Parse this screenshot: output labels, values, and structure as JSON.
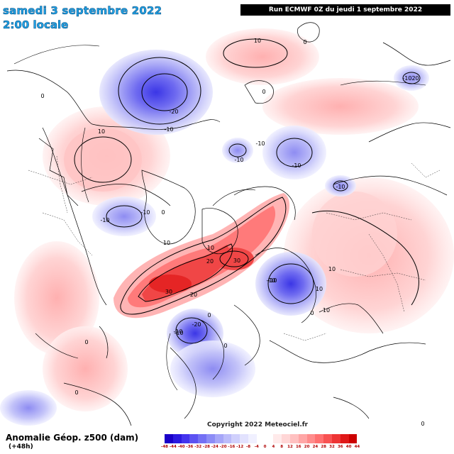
{
  "header": {
    "date": "samedi 3 septembre 2022",
    "time": "2:00 locale",
    "run": "Run ECMWF 0Z du jeudi 1 septembre 2022"
  },
  "footer": {
    "variable": "Anomalie Géop. z500 (dam)",
    "lead": "(+48h)",
    "copyright": "Copyright 2022 Meteociel.fr"
  },
  "legend": {
    "ticks": [
      "-48",
      "-44",
      "-40",
      "-36",
      "-32",
      "-28",
      "-24",
      "-20",
      "-16",
      "-12",
      "-8",
      "-4",
      "0",
      "4",
      "8",
      "12",
      "16",
      "20",
      "24",
      "28",
      "32",
      "36",
      "40",
      "44"
    ],
    "colors": [
      "#1a00c8",
      "#2c1ae0",
      "#4434ee",
      "#5c52f2",
      "#7470f4",
      "#8c8cf6",
      "#a6a6f8",
      "#bcbcfa",
      "#d0d0fc",
      "#e2e2fe",
      "#f0f0ff",
      "#ffffff",
      "#ffffff",
      "#ffeaea",
      "#ffd6d6",
      "#ffc0c0",
      "#ffa6a6",
      "#ff8c8c",
      "#ff7070",
      "#f85252",
      "#ee3434",
      "#e01818",
      "#cc0000"
    ]
  },
  "contour_labels": [
    {
      "text": "-20"
    },
    {
      "text": "-10"
    },
    {
      "text": "10"
    },
    {
      "text": "10"
    },
    {
      "text": "-10"
    },
    {
      "text": "-10"
    },
    {
      "text": "-10"
    },
    {
      "text": "-10"
    },
    {
      "text": "-10"
    },
    {
      "text": "-10"
    },
    {
      "text": "-1020"
    },
    {
      "text": "-10"
    },
    {
      "text": "-10"
    },
    {
      "text": "0"
    },
    {
      "text": "0"
    },
    {
      "text": "0"
    },
    {
      "text": "0"
    },
    {
      "text": "0"
    },
    {
      "text": "10"
    },
    {
      "text": "10"
    },
    {
      "text": "20"
    },
    {
      "text": "30"
    },
    {
      "text": "30"
    },
    {
      "text": "20"
    },
    {
      "text": "10"
    },
    {
      "text": "-10"
    },
    {
      "text": "10"
    },
    {
      "text": "10"
    },
    {
      "text": "-20"
    },
    {
      "text": "-10"
    },
    {
      "text": "0"
    },
    {
      "text": "0"
    },
    {
      "text": "0"
    },
    {
      "text": "0"
    },
    {
      "text": "0"
    }
  ]
}
